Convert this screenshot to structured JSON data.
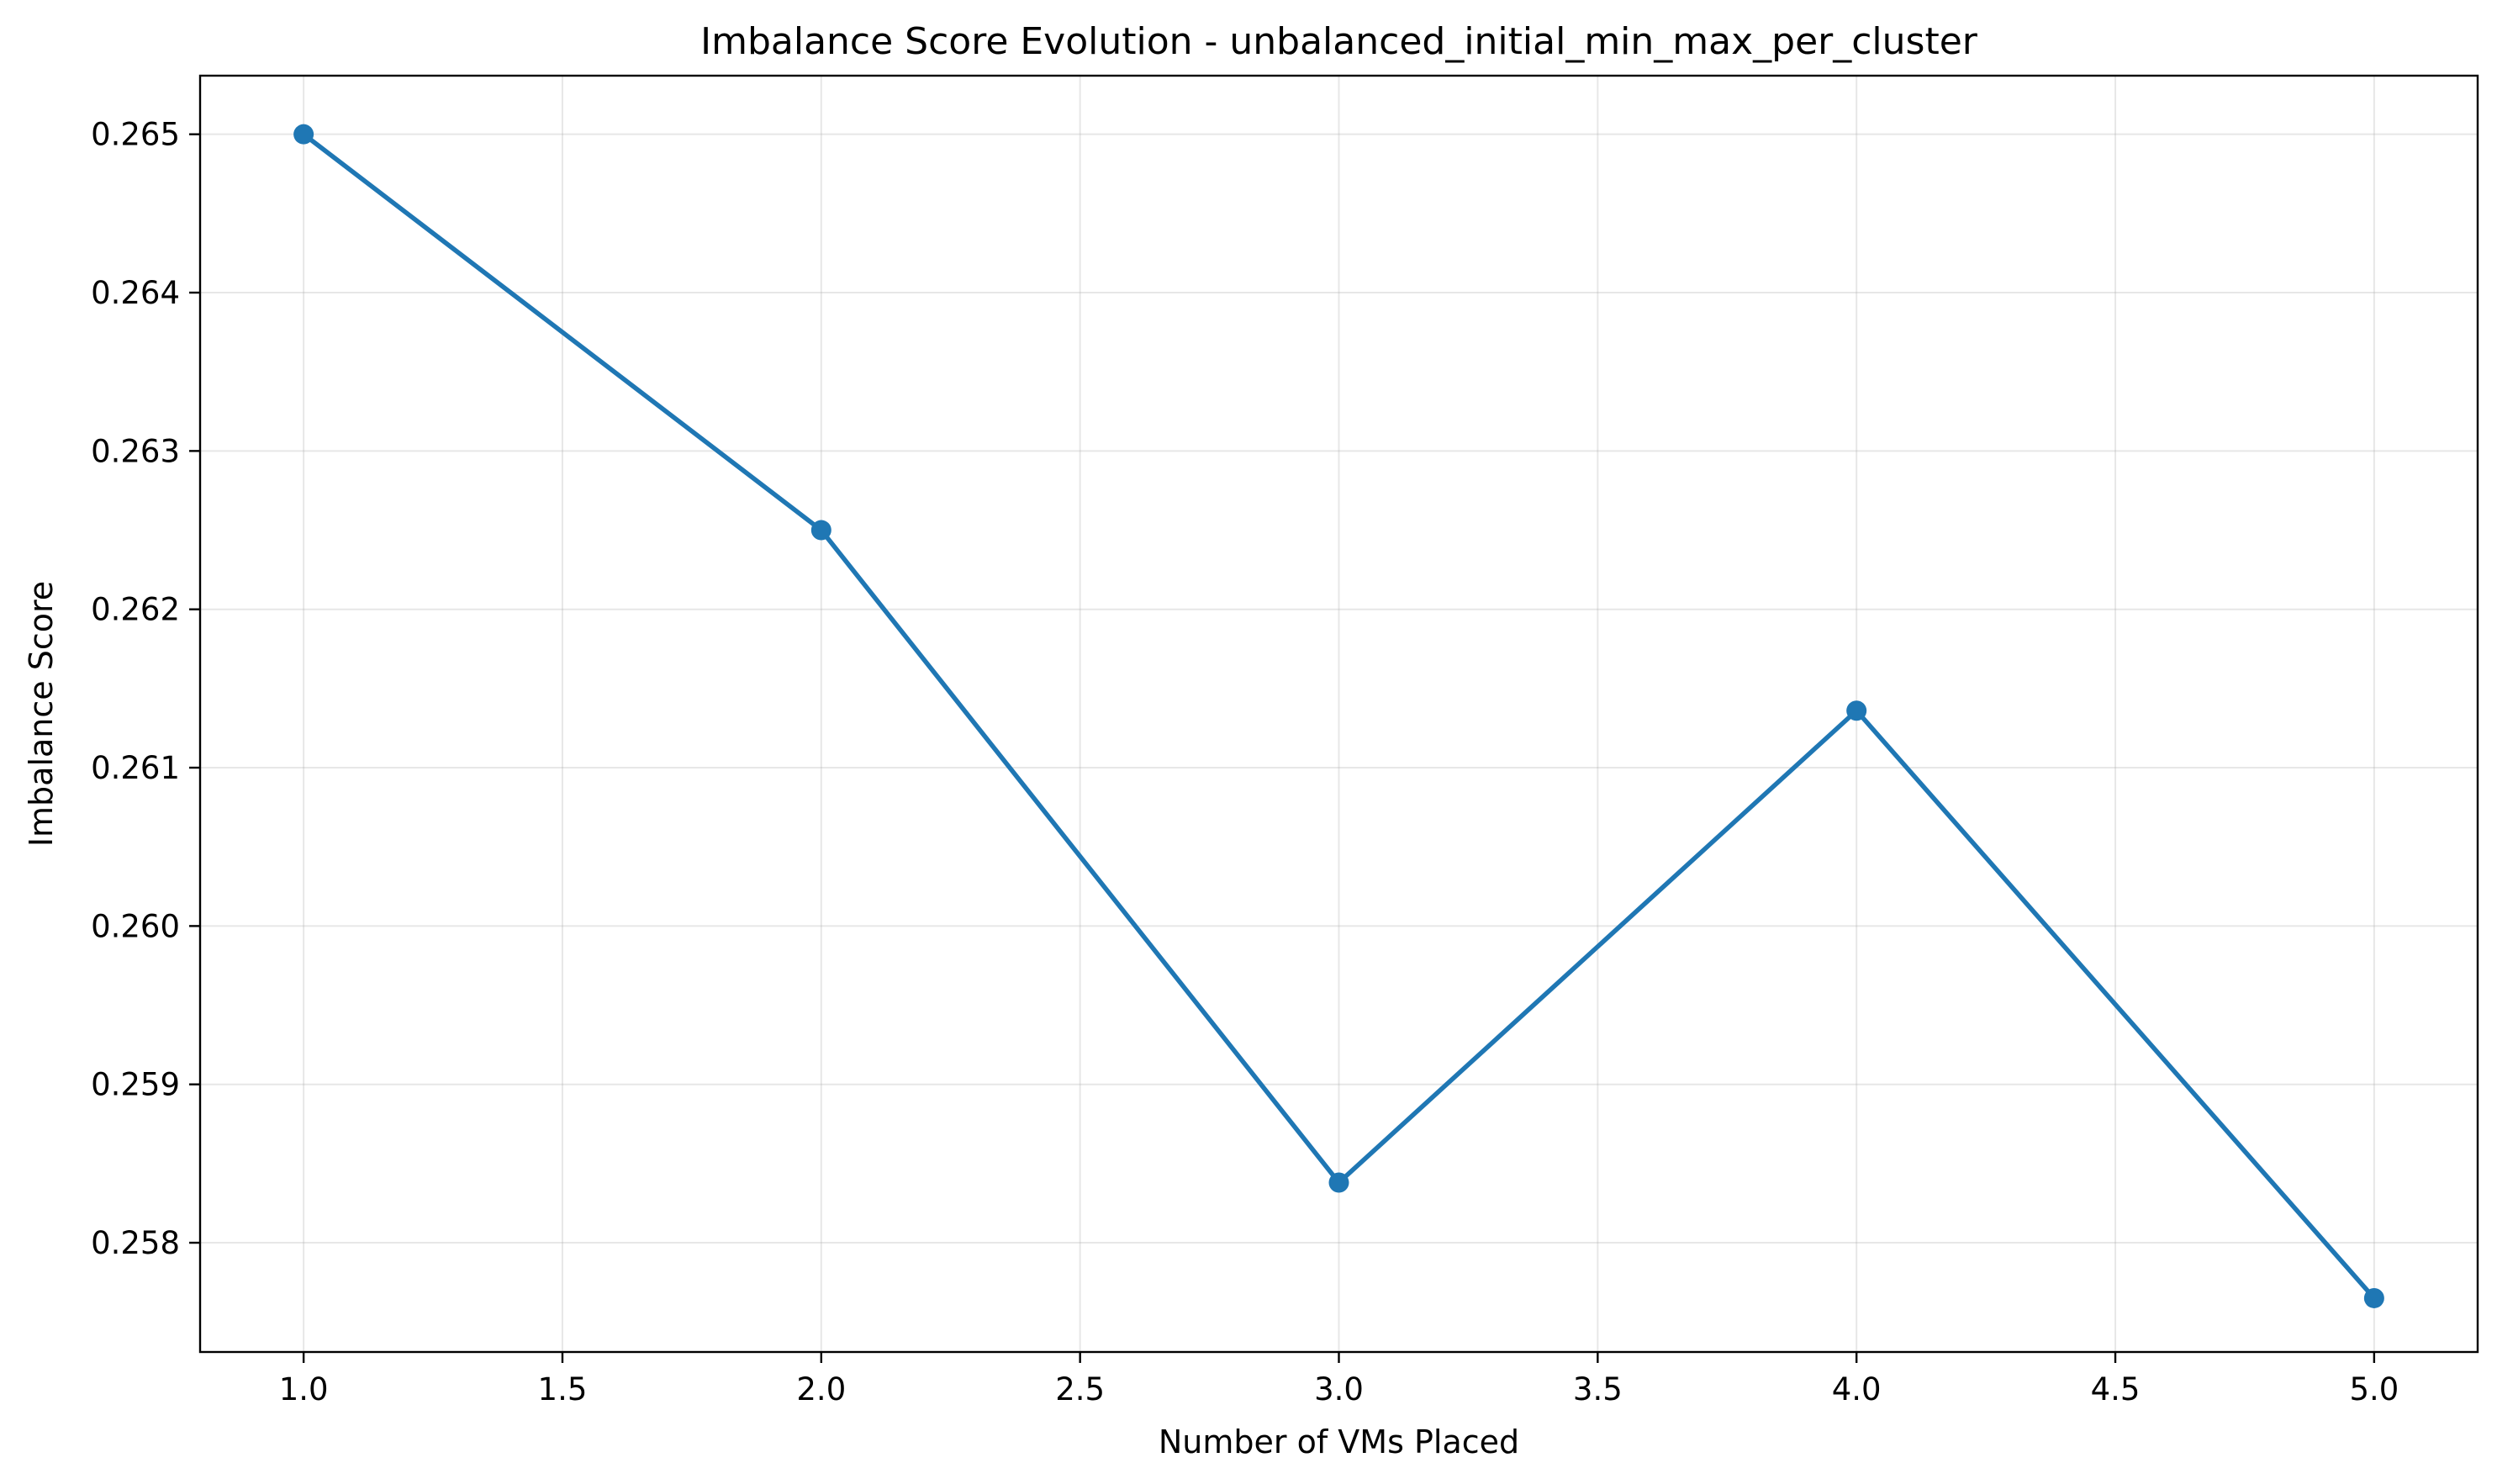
{
  "chart_data": {
    "type": "line",
    "title": "Imbalance Score Evolution - unbalanced_initial_min_max_per_cluster",
    "xlabel": "Number of VMs Placed",
    "ylabel": "Imbalance Score",
    "xlim": [
      0.8,
      5.2
    ],
    "ylim": [
      0.25731,
      0.26537
    ],
    "xticks": [
      1.0,
      1.5,
      2.0,
      2.5,
      3.0,
      3.5,
      4.0,
      4.5,
      5.0
    ],
    "xtick_labels": [
      "1.0",
      "1.5",
      "2.0",
      "2.5",
      "3.0",
      "3.5",
      "4.0",
      "4.5",
      "5.0"
    ],
    "yticks": [
      0.258,
      0.259,
      0.26,
      0.261,
      0.262,
      0.263,
      0.264,
      0.265
    ],
    "ytick_labels": [
      "0.258",
      "0.259",
      "0.260",
      "0.261",
      "0.262",
      "0.263",
      "0.264",
      "0.265"
    ],
    "grid": true,
    "legend": "none",
    "series": [
      {
        "color": "#1f77b4",
        "marker": "circle",
        "x": [
          1,
          2,
          3,
          4,
          5
        ],
        "y": [
          0.265,
          0.2625,
          0.25838,
          0.26136,
          0.25765
        ]
      }
    ]
  }
}
